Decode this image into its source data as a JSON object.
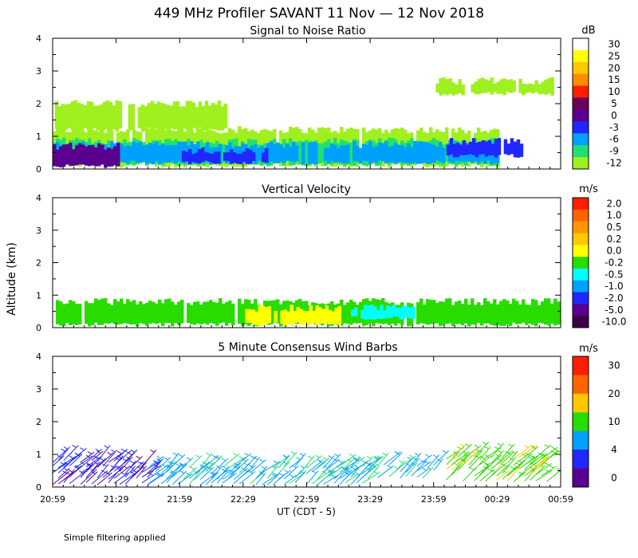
{
  "title": "449 MHz Profiler SAVANT 11 Nov — 12 Nov 2018",
  "ylabel": "Altitude (km)",
  "xlabel": "UT  (CDT - 5)",
  "footnote": "Simple filtering applied",
  "x_ticks": [
    "20:59",
    "21:29",
    "21:59",
    "22:29",
    "22:59",
    "23:29",
    "23:59",
    "00:29",
    "00:59"
  ],
  "y_ticks": [
    "0",
    "1",
    "2",
    "3",
    "4"
  ],
  "chart_data": [
    {
      "type": "heatmap",
      "title": "Signal to Noise Ratio",
      "xlabel": "UT  (CDT - 5)",
      "ylabel": "Altitude (km)",
      "xlim": [
        "20:59",
        "00:59"
      ],
      "ylim": [
        0,
        4
      ],
      "colorbar": {
        "unit": "dB",
        "labels": [
          "30",
          "25",
          "20",
          "15",
          "10",
          "5",
          "0",
          "-3",
          "-6",
          "-9",
          "-12"
        ],
        "colors": [
          "#ffffff",
          "#ffff00",
          "#ffc800",
          "#ff8c00",
          "#ff1e00",
          "#6a005a",
          "#5a0090",
          "#1e28ff",
          "#00a0ff",
          "#20e070",
          "#a0f020"
        ]
      },
      "bands": [
        {
          "t_start": "20:59",
          "t_end": "00:29",
          "alt_low": 0.1,
          "alt_high": 1.2,
          "class": "-12"
        },
        {
          "t_start": "21:00",
          "t_end": "22:20",
          "alt_low": 1.2,
          "alt_high": 2.0,
          "class": "-12"
        },
        {
          "t_start": "20:59",
          "t_end": "00:29",
          "alt_low": 0.15,
          "alt_high": 0.85,
          "class": "-9"
        },
        {
          "t_start": "20:59",
          "t_end": "00:29",
          "alt_low": 0.2,
          "alt_high": 0.75,
          "class": "-6"
        },
        {
          "t_start": "20:59",
          "t_end": "21:30",
          "alt_low": 0.1,
          "alt_high": 0.7,
          "class": "0"
        },
        {
          "t_start": "22:00",
          "t_end": "22:40",
          "alt_low": 0.2,
          "alt_high": 0.55,
          "class": "-3"
        },
        {
          "t_start": "00:05",
          "t_end": "00:40",
          "alt_low": 0.4,
          "alt_high": 0.85,
          "class": "-3"
        },
        {
          "t_start": "00:00",
          "t_end": "00:55",
          "alt_low": 2.3,
          "alt_high": 2.7,
          "class": "-12"
        }
      ]
    },
    {
      "type": "heatmap",
      "title": "Vertical Velocity",
      "xlabel": "UT  (CDT - 5)",
      "ylabel": "Altitude (km)",
      "xlim": [
        "20:59",
        "00:59"
      ],
      "ylim": [
        0,
        4
      ],
      "colorbar": {
        "unit": "m/s",
        "labels": [
          "2.0",
          "1.0",
          "0.5",
          "0.2",
          "0.0",
          "-0.2",
          "-0.5",
          "-1.0",
          "-2.0",
          "-5.0",
          "-10.0"
        ],
        "colors": [
          "#ff1e00",
          "#ff6400",
          "#ff9600",
          "#ffc800",
          "#ffff00",
          "#28dc00",
          "#00ffff",
          "#00a0ff",
          "#1e28ff",
          "#5a0090",
          "#3c0046"
        ]
      },
      "bands": [
        {
          "t_start": "20:59",
          "t_end": "00:59",
          "alt_low": 0.1,
          "alt_high": 0.8,
          "class": "-0.2"
        },
        {
          "t_start": "22:30",
          "t_end": "23:15",
          "alt_low": 0.1,
          "alt_high": 0.6,
          "class": "0.0"
        },
        {
          "t_start": "23:20",
          "t_end": "23:50",
          "alt_low": 0.3,
          "alt_high": 0.6,
          "class": "-0.5"
        }
      ]
    },
    {
      "type": "scatter",
      "title": "5 Minute Consensus Wind Barbs",
      "xlabel": "UT  (CDT - 5)",
      "ylabel": "Altitude (km)",
      "xlim": [
        "20:59",
        "00:59"
      ],
      "ylim": [
        0,
        4
      ],
      "colorbar": {
        "unit": "m/s",
        "labels": [
          "30",
          "20",
          "10",
          "4",
          "0"
        ],
        "colors": [
          "#ff1e00",
          "#ff6400",
          "#ffc800",
          "#28dc00",
          "#00a0ff",
          "#1e28ff",
          "#5a0090"
        ]
      },
      "barbs": [
        {
          "t_start": "20:59",
          "t_end": "21:45",
          "alt_low": 0.1,
          "alt_high": 0.9,
          "speed_class": "4"
        },
        {
          "t_start": "21:45",
          "t_end": "23:30",
          "alt_low": 0.1,
          "alt_high": 0.75,
          "speed_class": "4-10"
        },
        {
          "t_start": "23:30",
          "t_end": "00:00",
          "alt_low": 0.3,
          "alt_high": 0.8,
          "speed_class": "4-10"
        },
        {
          "t_start": "00:05",
          "t_end": "00:55",
          "alt_low": 0.2,
          "alt_high": 0.9,
          "speed_class": "10"
        }
      ]
    }
  ]
}
